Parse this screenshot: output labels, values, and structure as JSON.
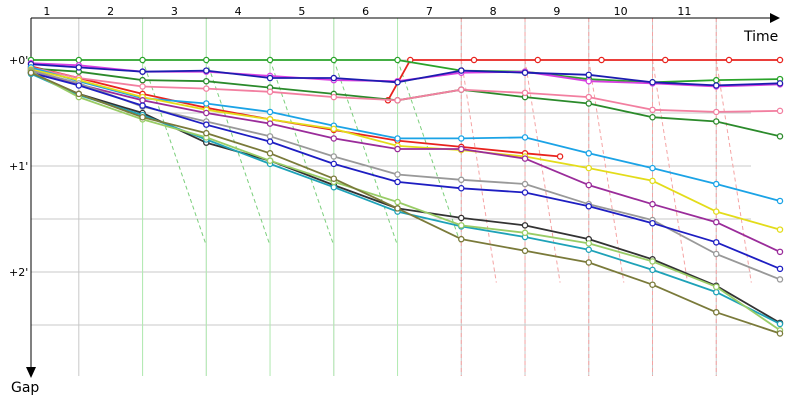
{
  "chart_data": {
    "type": "line",
    "title": "",
    "xlabel": "Time",
    "ylabel": "Gap",
    "x_ticks": [
      "1",
      "2",
      "3",
      "4",
      "5",
      "6",
      "7",
      "8",
      "9",
      "10",
      "11"
    ],
    "y_ticks": [
      "+0'",
      "+1'",
      "+2'"
    ],
    "xlim": [
      0.5,
      12.25
    ],
    "ylim": [
      0,
      2.95
    ],
    "grid": true,
    "colors": {
      "pit_vertical": "#b3ecb3",
      "pit_diagonal_green": "#7ccf7c",
      "pit_diagonal_red": "#f5a3a3",
      "grid": "#c8c8c8",
      "axis": "#000000"
    },
    "pit_green_laps": [
      2,
      3,
      4,
      5,
      6
    ],
    "pit_red_laps": [
      7,
      8,
      9,
      10,
      11
    ],
    "series": [
      {
        "color": "#e8231e",
        "points": [
          [
            0.5,
            0.06
          ],
          [
            1.25,
            0.17
          ],
          [
            2.25,
            0.32
          ],
          [
            3.25,
            0.45
          ],
          [
            4.25,
            0.56
          ],
          [
            5.25,
            0.66
          ],
          [
            6.25,
            0.76
          ],
          [
            7.25,
            0.82
          ],
          [
            8.25,
            0.88
          ],
          [
            8.8,
            0.91
          ]
        ]
      },
      {
        "color": "#e8231e",
        "points": [
          [
            6.1,
            0.38
          ],
          [
            6.45,
            0
          ],
          [
            7.45,
            0
          ],
          [
            8.45,
            0
          ],
          [
            9.45,
            0
          ],
          [
            10.45,
            0
          ],
          [
            11.45,
            0
          ],
          [
            12.25,
            0
          ]
        ]
      },
      {
        "color": "#2aa32a",
        "points": [
          [
            0.5,
            0
          ],
          [
            1.25,
            0
          ],
          [
            2.25,
            0
          ],
          [
            3.25,
            0
          ],
          [
            4.25,
            0
          ],
          [
            5.25,
            0
          ],
          [
            6.25,
            0
          ],
          [
            7.25,
            0.1
          ],
          [
            8.25,
            0.11
          ],
          [
            9.25,
            0.18
          ],
          [
            10.25,
            0.21
          ],
          [
            11.25,
            0.19
          ],
          [
            12.25,
            0.18
          ]
        ]
      },
      {
        "color": "#2b8a2b",
        "points": [
          [
            0.5,
            0.08
          ],
          [
            1.25,
            0.11
          ],
          [
            2.25,
            0.19
          ],
          [
            3.25,
            0.2
          ],
          [
            4.25,
            0.26
          ],
          [
            5.25,
            0.32
          ],
          [
            6.25,
            0.38
          ],
          [
            7.25,
            0.28
          ],
          [
            8.25,
            0.35
          ],
          [
            9.25,
            0.41
          ],
          [
            10.25,
            0.54
          ],
          [
            11.25,
            0.58
          ],
          [
            12.25,
            0.72
          ]
        ]
      },
      {
        "color": "#d73fe0",
        "points": [
          [
            0.5,
            0.03
          ],
          [
            1.25,
            0.05
          ],
          [
            2.25,
            0.11
          ],
          [
            3.25,
            0.11
          ],
          [
            4.25,
            0.15
          ],
          [
            5.25,
            0.19
          ],
          [
            6.25,
            0.2
          ],
          [
            7.25,
            0.12
          ],
          [
            8.25,
            0.11
          ],
          [
            9.25,
            0.2
          ],
          [
            10.25,
            0.22
          ],
          [
            11.25,
            0.25
          ],
          [
            12.25,
            0.23
          ]
        ]
      },
      {
        "color": "#1c1cb0",
        "points": [
          [
            0.5,
            0.04
          ],
          [
            1.25,
            0.07
          ],
          [
            2.25,
            0.11
          ],
          [
            3.25,
            0.1
          ],
          [
            4.25,
            0.17
          ],
          [
            5.25,
            0.17
          ],
          [
            6.25,
            0.21
          ],
          [
            7.25,
            0.1
          ],
          [
            8.25,
            0.12
          ],
          [
            9.25,
            0.14
          ],
          [
            10.25,
            0.21
          ],
          [
            11.25,
            0.24
          ],
          [
            12.25,
            0.22
          ]
        ]
      },
      {
        "color": "#f27fa0",
        "points": [
          [
            0.5,
            0.07
          ],
          [
            1.25,
            0.17
          ],
          [
            2.25,
            0.25
          ],
          [
            3.25,
            0.27
          ],
          [
            4.25,
            0.3
          ],
          [
            5.25,
            0.35
          ],
          [
            6.25,
            0.38
          ],
          [
            7.25,
            0.28
          ],
          [
            8.25,
            0.31
          ],
          [
            9.25,
            0.35
          ],
          [
            10.25,
            0.47
          ],
          [
            11.25,
            0.49
          ],
          [
            12.25,
            0.48
          ]
        ]
      },
      {
        "color": "#1ba3e6",
        "points": [
          [
            0.5,
            0.07
          ],
          [
            1.25,
            0.2
          ],
          [
            2.25,
            0.36
          ],
          [
            3.25,
            0.41
          ],
          [
            4.25,
            0.49
          ],
          [
            5.25,
            0.62
          ],
          [
            6.25,
            0.74
          ],
          [
            7.25,
            0.74
          ],
          [
            8.25,
            0.73
          ],
          [
            9.25,
            0.88
          ],
          [
            10.25,
            1.02
          ],
          [
            11.25,
            1.17
          ],
          [
            12.25,
            1.33
          ]
        ]
      },
      {
        "color": "#e3dc1a",
        "points": [
          [
            0.5,
            0.09
          ],
          [
            1.25,
            0.19
          ],
          [
            2.25,
            0.35
          ],
          [
            3.25,
            0.47
          ],
          [
            4.25,
            0.56
          ],
          [
            5.25,
            0.65
          ],
          [
            6.25,
            0.81
          ],
          [
            7.25,
            0.85
          ],
          [
            8.25,
            0.91
          ],
          [
            9.25,
            1.02
          ],
          [
            10.25,
            1.14
          ],
          [
            11.25,
            1.43
          ],
          [
            12.25,
            1.6
          ]
        ]
      },
      {
        "color": "#9a2c9a",
        "points": [
          [
            0.5,
            0.1
          ],
          [
            1.25,
            0.23
          ],
          [
            2.25,
            0.38
          ],
          [
            3.25,
            0.5
          ],
          [
            4.25,
            0.6
          ],
          [
            5.25,
            0.74
          ],
          [
            6.25,
            0.84
          ],
          [
            7.25,
            0.84
          ],
          [
            8.25,
            0.93
          ],
          [
            9.25,
            1.18
          ],
          [
            10.25,
            1.36
          ],
          [
            11.25,
            1.53
          ],
          [
            12.25,
            1.81
          ]
        ]
      },
      {
        "color": "#999999",
        "points": [
          [
            0.5,
            0.1
          ],
          [
            1.25,
            0.22
          ],
          [
            2.25,
            0.44
          ],
          [
            3.25,
            0.58
          ],
          [
            4.25,
            0.72
          ],
          [
            5.25,
            0.91
          ],
          [
            6.25,
            1.08
          ],
          [
            7.25,
            1.13
          ],
          [
            8.25,
            1.17
          ],
          [
            9.25,
            1.36
          ],
          [
            10.25,
            1.51
          ],
          [
            11.25,
            1.83
          ],
          [
            12.25,
            2.07
          ]
        ]
      },
      {
        "color": "#1e1ec2",
        "points": [
          [
            0.5,
            0.12
          ],
          [
            1.25,
            0.24
          ],
          [
            2.25,
            0.43
          ],
          [
            3.25,
            0.61
          ],
          [
            4.25,
            0.77
          ],
          [
            5.25,
            0.98
          ],
          [
            6.25,
            1.15
          ],
          [
            7.25,
            1.21
          ],
          [
            8.25,
            1.25
          ],
          [
            9.25,
            1.38
          ],
          [
            10.25,
            1.54
          ],
          [
            11.25,
            1.72
          ],
          [
            12.25,
            1.97
          ]
        ]
      },
      {
        "color": "#333333",
        "points": [
          [
            0.5,
            0.12
          ],
          [
            1.25,
            0.32
          ],
          [
            2.25,
            0.5
          ],
          [
            3.25,
            0.78
          ],
          [
            4.25,
            0.95
          ],
          [
            5.25,
            1.18
          ],
          [
            6.25,
            1.4
          ],
          [
            7.25,
            1.49
          ],
          [
            8.25,
            1.56
          ],
          [
            9.25,
            1.69
          ],
          [
            10.25,
            1.88
          ],
          [
            11.25,
            2.13
          ],
          [
            12.25,
            2.48
          ]
        ]
      },
      {
        "color": "#1ea2b8",
        "points": [
          [
            0.5,
            0.13
          ],
          [
            1.25,
            0.33
          ],
          [
            2.25,
            0.52
          ],
          [
            3.25,
            0.75
          ],
          [
            4.25,
            0.98
          ],
          [
            5.25,
            1.2
          ],
          [
            6.25,
            1.43
          ],
          [
            7.25,
            1.57
          ],
          [
            8.25,
            1.67
          ],
          [
            9.25,
            1.79
          ],
          [
            10.25,
            1.98
          ],
          [
            11.25,
            2.19
          ],
          [
            12.25,
            2.49
          ]
        ]
      },
      {
        "color": "#99cc66",
        "points": [
          [
            0.5,
            0.11
          ],
          [
            1.25,
            0.35
          ],
          [
            2.25,
            0.56
          ],
          [
            3.25,
            0.73
          ],
          [
            4.25,
            0.95
          ],
          [
            5.25,
            1.15
          ],
          [
            6.25,
            1.34
          ],
          [
            7.25,
            1.56
          ],
          [
            8.25,
            1.63
          ],
          [
            9.25,
            1.73
          ],
          [
            10.25,
            1.9
          ],
          [
            11.25,
            2.14
          ],
          [
            12.25,
            2.55
          ]
        ]
      },
      {
        "color": "#7a7a3a",
        "points": [
          [
            0.5,
            0.12
          ],
          [
            1.25,
            0.32
          ],
          [
            2.25,
            0.54
          ],
          [
            3.25,
            0.69
          ],
          [
            4.25,
            0.88
          ],
          [
            5.25,
            1.12
          ],
          [
            6.25,
            1.4
          ],
          [
            7.25,
            1.69
          ],
          [
            8.25,
            1.8
          ],
          [
            9.25,
            1.91
          ],
          [
            10.25,
            2.12
          ],
          [
            11.25,
            2.38
          ],
          [
            12.25,
            2.58
          ]
        ]
      }
    ]
  }
}
